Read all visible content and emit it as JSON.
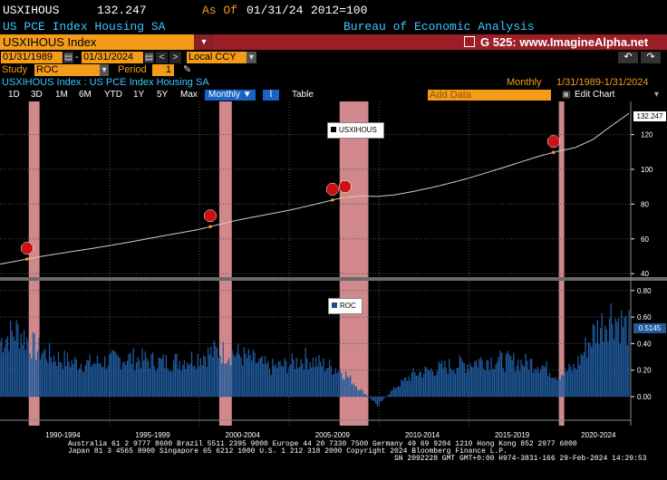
{
  "header": {
    "ticker": "USXIHOUS",
    "last_value": "132.247",
    "as_of_label": "As Of",
    "as_of_date": "01/31/24",
    "base": "2012=100",
    "description": "US PCE Index Housing SA",
    "source": "Bureau of Economic Analysis"
  },
  "security_bar": {
    "security": "USXIHOUS Index",
    "function_label": "G 525: www.ImagineAlpha.net",
    "nav_back": "↶",
    "nav_fwd": "↷"
  },
  "controls": {
    "start_date": "01/31/1989",
    "end_date": "01/31/2024",
    "currency": "Local CCY",
    "study_label": "Study",
    "study_value": "ROC",
    "period_label": "Period",
    "period_value": "1"
  },
  "info_row": {
    "title": "USXIHOUS Index : US PCE Index Housing SA",
    "frequency": "Monthly",
    "range": "1/31/1989-1/31/2024"
  },
  "toolbar": {
    "buttons": [
      "1D",
      "3D",
      "1M",
      "6M",
      "YTD",
      "1Y",
      "5Y",
      "Max"
    ],
    "frequency_select": "Monthly",
    "table_label": "Table",
    "add_data_placeholder": "Add Data",
    "edit_chart_label": "Edit Chart",
    "icons": [
      "line-chart-icon",
      "settings-icon"
    ]
  },
  "footer": {
    "line1": "Australia 61 2 9777 8600 Brazil 5511 2395 9000 Europe 44 20 7330 7500 Germany 49 69 9204 1210 Hong Kong 852 2977 6000",
    "line2": "Japan 81 3 4565 8900        Singapore 65 6212 1000        U.S. 1 212 318 2000        Copyright 2024 Bloomberg Finance L.P.",
    "line3": "SN 2092228 GMT  GMT+0:00 H974-3831-166 29-Feb-2024 14:29:53"
  },
  "colors": {
    "background": "#000000",
    "bloomberg_orange": "#f49b1a",
    "header_red": "#9c1e26",
    "recession_band": "#f6a0a6",
    "index_line": "#cfcfcf",
    "roc_bars": "#1f5a9c",
    "marker_red": "#cc1111",
    "accent_blue": "#39c8ff"
  },
  "chart_data": {
    "type": "line",
    "x_tick_labels": [
      "1990-1994",
      "1995-1999",
      "2000-2004",
      "2005-2009",
      "2010-2014",
      "2015-2019",
      "2020-2024"
    ],
    "x_range": [
      1989.0,
      2024.1
    ],
    "recessions": [
      [
        1990.6,
        1991.2
      ],
      [
        2001.2,
        2001.9
      ],
      [
        2007.9,
        2009.5
      ],
      [
        2020.1,
        2020.4
      ]
    ],
    "upper": {
      "legend": "USXIHOUS",
      "last_value_label": "132.247",
      "ylim": [
        38,
        137
      ],
      "y_ticks": [
        40,
        60,
        80,
        100,
        120
      ],
      "series": {
        "name": "USXIHOUS",
        "x": [
          1989.0,
          1990.0,
          1991.0,
          1992.0,
          1993.0,
          1994.0,
          1995.0,
          1996.0,
          1997.0,
          1998.0,
          1999.0,
          2000.0,
          2001.0,
          2002.0,
          2003.0,
          2004.0,
          2005.0,
          2006.0,
          2007.0,
          2008.0,
          2009.0,
          2010.0,
          2011.0,
          2012.0,
          2013.0,
          2014.0,
          2015.0,
          2016.0,
          2017.0,
          2018.0,
          2019.0,
          2020.0,
          2021.0,
          2022.0,
          2023.0,
          2024.0
        ],
        "values": [
          45.5,
          47.4,
          49.4,
          51.1,
          52.7,
          54.3,
          56.0,
          57.8,
          59.7,
          61.6,
          63.4,
          65.3,
          67.8,
          70.3,
          72.4,
          74.3,
          76.3,
          78.6,
          81.1,
          83.6,
          84.7,
          84.4,
          85.4,
          87.3,
          89.5,
          92.0,
          94.7,
          97.8,
          101.0,
          104.3,
          107.6,
          110.3,
          112.5,
          117.2,
          124.9,
          132.2
        ]
      },
      "event_markers": [
        1990.5,
        2000.7,
        2007.5,
        2008.2,
        2019.8
      ]
    },
    "lower": {
      "legend": "ROC",
      "last_value_label": "0.5145",
      "ylim": [
        -0.15,
        0.86
      ],
      "y_ticks": [
        0.0,
        0.2,
        0.4,
        0.6,
        0.8
      ],
      "y_tick_labels": [
        "0.00",
        "0.20",
        "0.40",
        "0.60",
        "0.80"
      ],
      "series": {
        "name": "ROC",
        "type": "bar",
        "x": [
          1989.0,
          1990.0,
          1991.0,
          1992.0,
          1993.0,
          1994.0,
          1995.0,
          1996.0,
          1997.0,
          1998.0,
          1999.0,
          2000.0,
          2001.0,
          2002.0,
          2003.0,
          2004.0,
          2005.0,
          2006.0,
          2007.0,
          2008.0,
          2009.0,
          2010.0,
          2011.0,
          2012.0,
          2013.0,
          2014.0,
          2015.0,
          2016.0,
          2017.0,
          2018.0,
          2019.0,
          2020.0,
          2021.0,
          2022.0,
          2023.0,
          2024.0
        ],
        "values": [
          0.42,
          0.5,
          0.36,
          0.3,
          0.26,
          0.25,
          0.27,
          0.29,
          0.28,
          0.26,
          0.27,
          0.3,
          0.34,
          0.33,
          0.28,
          0.22,
          0.24,
          0.29,
          0.24,
          0.2,
          0.06,
          -0.06,
          0.07,
          0.17,
          0.2,
          0.23,
          0.25,
          0.28,
          0.27,
          0.26,
          0.25,
          0.16,
          0.22,
          0.47,
          0.62,
          0.51
        ]
      }
    }
  }
}
